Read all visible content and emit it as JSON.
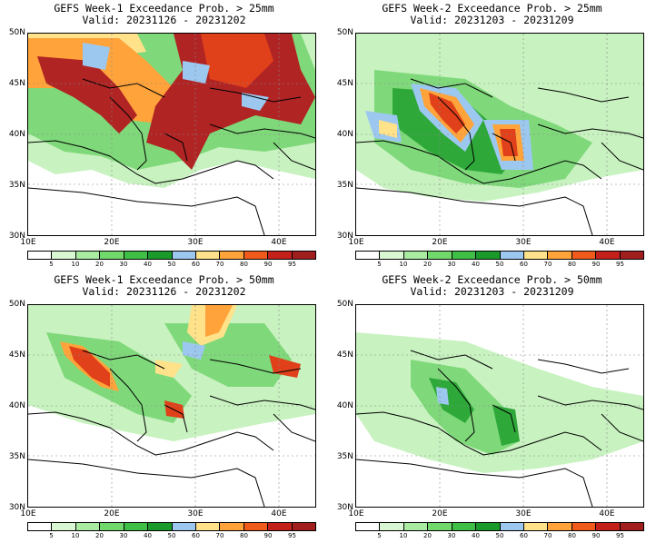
{
  "panels": [
    {
      "line1": "GEFS Week-1 Exceedance Prob. > 25mm",
      "line2": "Valid: 20231126 - 20231202"
    },
    {
      "line1": "GEFS Week-2 Exceedance Prob. > 25mm",
      "line2": "Valid: 20231203 - 20231209"
    },
    {
      "line1": "GEFS Week-1 Exceedance Prob. > 50mm",
      "line2": "Valid: 20231126 - 20231202"
    },
    {
      "line1": "GEFS Week-2 Exceedance Prob. > 50mm",
      "line2": "Valid: 20231203 - 20231209"
    }
  ],
  "lat_labels": [
    "50N",
    "45N",
    "40N",
    "35N",
    "30N"
  ],
  "lon_labels": [
    "10E",
    "20E",
    "30E",
    "40E"
  ],
  "colorbar": {
    "ticks": [
      "5",
      "10",
      "20",
      "30",
      "40",
      "50",
      "60",
      "70",
      "80",
      "90",
      "95"
    ],
    "colors": [
      "#ffffff",
      "#d9f7d2",
      "#a9eba0",
      "#71d96c",
      "#3fbf45",
      "#1a9a2a",
      "#9cc8f0",
      "#ffe28a",
      "#ffa33a",
      "#f05a1a",
      "#c4201a",
      "#a01e1e"
    ]
  },
  "map_colors": {
    "green_light": "#c8f2c0",
    "green_mid": "#7fd97a",
    "green_dark": "#2fa83a",
    "blue": "#9cc8f0",
    "yellow": "#ffe28a",
    "orange": "#ffa33a",
    "red": "#e0401a",
    "dark_red": "#b02424"
  }
}
